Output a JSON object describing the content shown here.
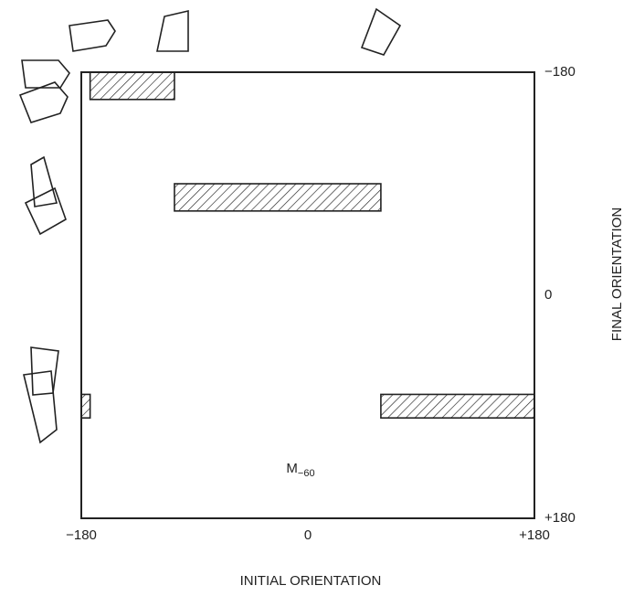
{
  "chart_data": {
    "type": "range",
    "xlabel": "INITIAL ORIENTATION",
    "ylabel": "FINAL ORIENTATION",
    "xlim": [
      -180,
      180
    ],
    "ylim": [
      -180,
      180
    ],
    "y_inverted": true,
    "xticks": [
      {
        "value": -180,
        "label": "−180"
      },
      0,
      {
        "value": 180,
        "label": "+180"
      }
    ],
    "yticks": [
      {
        "value": -180,
        "label": "−180"
      },
      0,
      {
        "value": 180,
        "label": "+180"
      }
    ],
    "annotation": {
      "text": "M",
      "subscript": "−60",
      "x": 0,
      "y": 140
    },
    "color": "#222",
    "boxes": [
      {
        "x": [
          -173,
          -106
        ],
        "y": [
          -180,
          -158
        ]
      },
      {
        "x": [
          -106,
          58
        ],
        "y": [
          -90,
          -68
        ]
      },
      {
        "x": [
          58,
          180
        ],
        "y": [
          80,
          99
        ]
      },
      {
        "x": [
          -180,
          -173
        ],
        "y": [
          80,
          99
        ]
      }
    ]
  }
}
